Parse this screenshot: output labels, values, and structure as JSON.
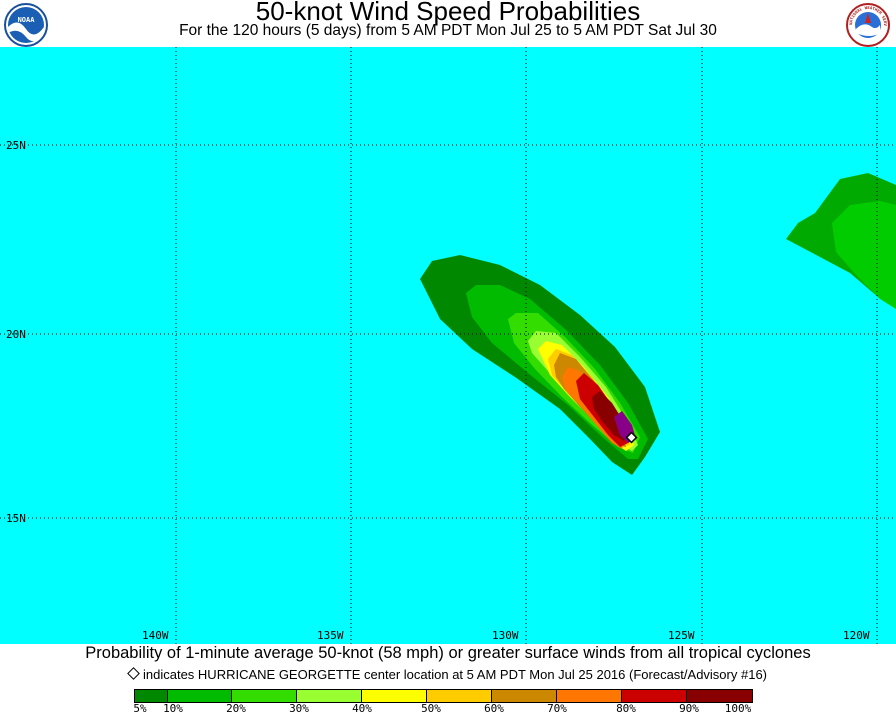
{
  "header": {
    "title": "50-knot Wind Speed Probabilities",
    "subtitle": "For the 120 hours (5 days) from 5 AM PDT Mon Jul 25 to 5 AM PDT Sat Jul 30",
    "left_logo_text": "NOAA",
    "right_logo_text": "NATIONAL WEATHER SERVICE"
  },
  "map": {
    "ocean_color": "#00FFFF",
    "lat_labels": [
      "25N",
      "20N",
      "15N"
    ],
    "lon_labels": [
      "140W",
      "135W",
      "130W",
      "125W",
      "120W"
    ],
    "storm_marker": "diamond-icon"
  },
  "footer": {
    "caption": "Probability of 1-minute average 50-knot (58 mph) or greater surface winds from all tropical cyclones",
    "note": "indicates HURRICANE GEORGETTE center location at 5 AM PDT Mon Jul 25 2016 (Forecast/Advisory #16)"
  },
  "legend": {
    "labels": [
      "5%",
      "10%",
      "20%",
      "30%",
      "40%",
      "50%",
      "60%",
      "70%",
      "80%",
      "90%",
      "100%"
    ],
    "colors": [
      "#008800",
      "#00BB00",
      "#33DD00",
      "#99FF33",
      "#FFFF00",
      "#FFCC00",
      "#CC8800",
      "#FF7700",
      "#CC0000",
      "#880000",
      "#880088"
    ]
  }
}
